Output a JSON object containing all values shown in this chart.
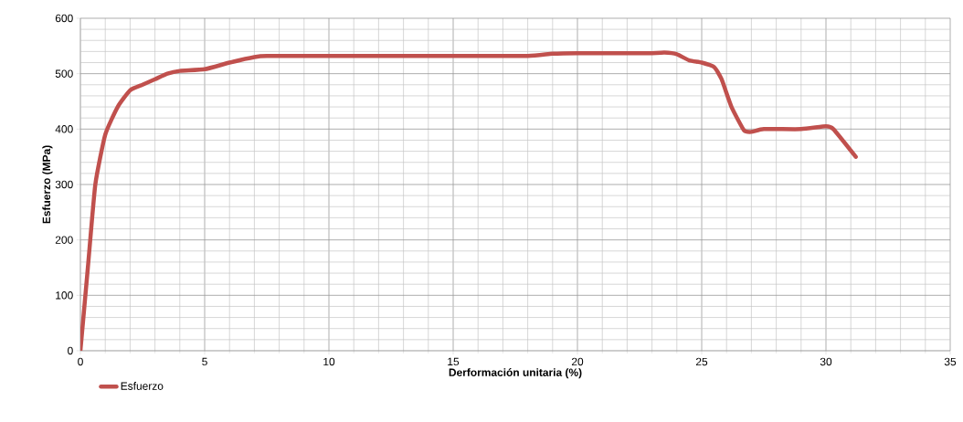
{
  "chart_data": {
    "type": "line",
    "xlabel": "Derformación unitaria (%)",
    "ylabel": "Esfuerzo (MPa)",
    "xlim": [
      0,
      35
    ],
    "ylim": [
      0,
      600
    ],
    "xticks": [
      0,
      5,
      10,
      15,
      20,
      25,
      30,
      35
    ],
    "yticks": [
      0,
      100,
      200,
      300,
      400,
      500,
      600
    ],
    "grid": true,
    "legend": "bottom left",
    "marker": "none",
    "line_style": "solid",
    "series": [
      {
        "name": "Esfuerzo",
        "color": "#c0504d",
        "x": [
          0,
          0.3,
          0.6,
          1,
          1.5,
          2,
          2.5,
          3,
          3.5,
          4,
          5,
          6,
          7,
          7.5,
          10,
          15,
          18,
          19,
          20,
          23,
          23.5,
          24,
          24.5,
          25,
          25.5,
          25.8,
          26.2,
          26.7,
          27,
          27.5,
          29,
          30,
          30.3,
          31.2
        ],
        "values": [
          0,
          150,
          300,
          390,
          440,
          470,
          480,
          490,
          500,
          505,
          508,
          520,
          530,
          532,
          532,
          532,
          532,
          536,
          537,
          537,
          538,
          535,
          524,
          520,
          512,
          490,
          440,
          398,
          395,
          400,
          400,
          405,
          400,
          350
        ]
      }
    ]
  }
}
